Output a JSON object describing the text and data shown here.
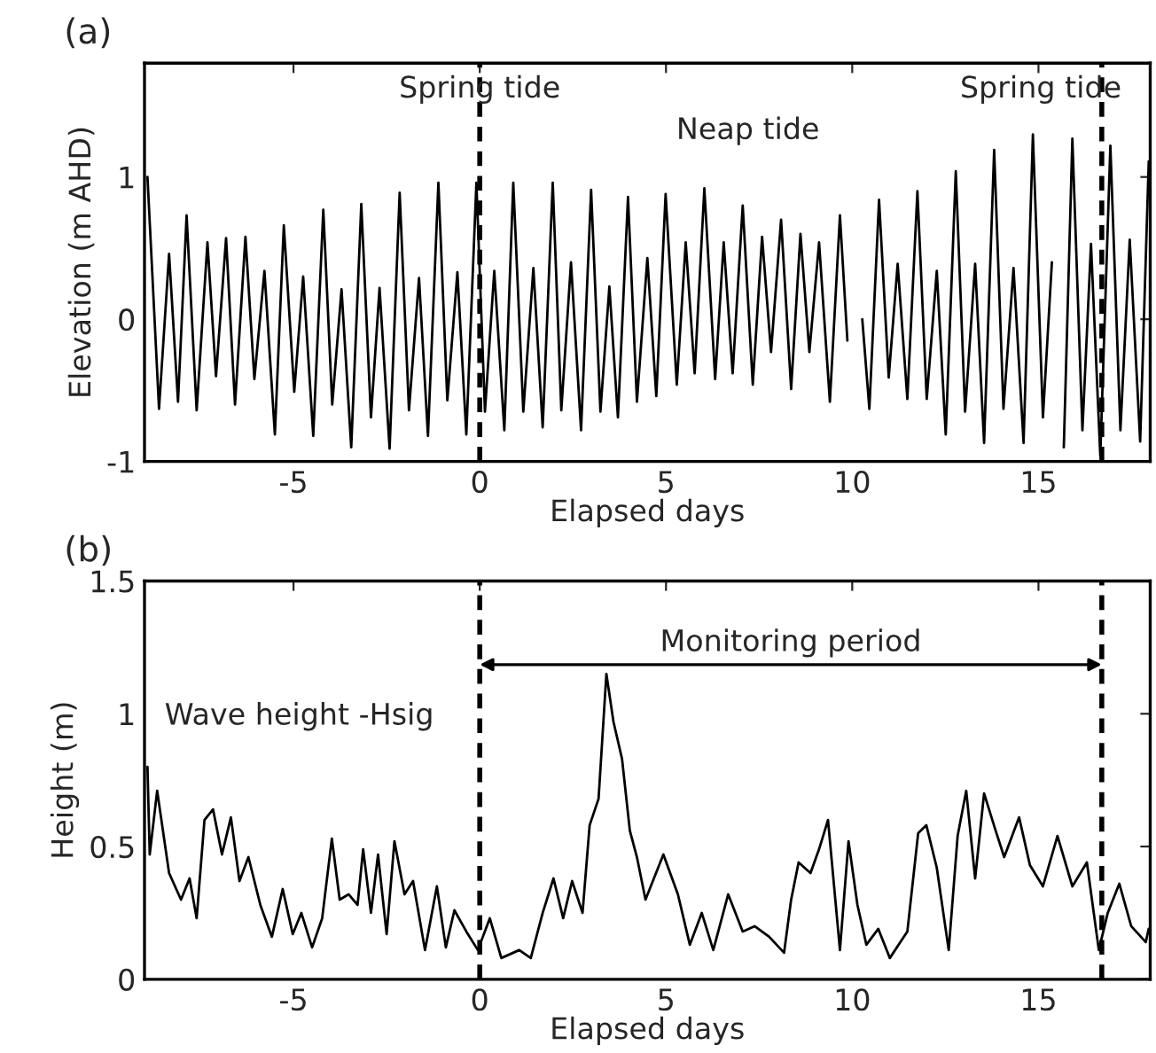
{
  "chart_data": [
    {
      "type": "line",
      "title": "(a)",
      "xlabel": "Elapsed days",
      "ylabel": "Elevation (m AHD)",
      "xlim": [
        -9,
        18
      ],
      "xticks": [
        -5,
        0,
        5,
        10,
        15
      ],
      "ylim": [
        -1,
        1.8
      ],
      "yticks": [
        -1,
        0,
        1
      ],
      "grid": false,
      "legend": false,
      "x": [
        -8.92,
        -8.61,
        -8.34,
        -8.1,
        -7.87,
        -7.6,
        -7.31,
        -7.08,
        -6.81,
        -6.57,
        -6.29,
        -6.05,
        -5.78,
        -5.5,
        -5.26,
        -4.98,
        -4.74,
        -4.47,
        -4.2,
        -3.96,
        -3.71,
        -3.45,
        -3.18,
        -2.92,
        -2.69,
        -2.42,
        -2.15,
        -1.9,
        -1.63,
        -1.39,
        -1.11,
        -0.87,
        -0.6,
        -0.36,
        -0.09,
        0.14,
        0.39,
        0.66,
        0.9,
        1.17,
        1.44,
        1.69,
        1.96,
        2.19,
        2.45,
        2.72,
        2.99,
        3.24,
        3.48,
        3.71,
        3.98,
        4.22,
        4.5,
        4.74,
        4.99,
        5.29,
        5.53,
        5.77,
        6.03,
        6.32,
        6.55,
        6.79,
        7.06,
        7.33,
        7.58,
        7.82,
        8.09,
        8.36,
        8.61,
        8.85,
        9.11,
        9.4,
        9.67,
        9.87,
        10.07,
        10.27,
        10.46,
        10.72,
        10.98,
        11.22,
        11.48,
        11.75,
        12.0,
        12.27,
        12.51,
        12.78,
        13.03,
        13.3,
        13.54,
        13.81,
        14.06,
        14.33,
        14.6,
        14.85,
        15.12,
        15.36,
        15.52,
        15.68,
        15.91,
        16.18,
        16.41,
        16.66,
        16.93,
        17.2,
        17.45,
        17.73,
        17.96
      ],
      "series": [
        {
          "color": "#000000",
          "values": [
            1.0,
            -0.63,
            0.46,
            -0.58,
            0.73,
            -0.64,
            0.54,
            -0.4,
            0.57,
            -0.6,
            0.58,
            -0.42,
            0.34,
            -0.81,
            0.66,
            -0.51,
            0.3,
            -0.82,
            0.77,
            -0.6,
            0.21,
            -0.9,
            0.81,
            -0.69,
            0.22,
            -0.91,
            0.89,
            -0.64,
            0.29,
            -0.82,
            0.96,
            -0.57,
            0.33,
            -0.81,
            0.96,
            -0.65,
            0.34,
            -0.78,
            0.96,
            -0.65,
            0.36,
            -0.76,
            0.96,
            -0.64,
            0.4,
            -0.78,
            0.91,
            -0.65,
            0.23,
            -0.69,
            0.86,
            -0.58,
            0.43,
            -0.54,
            0.88,
            -0.46,
            0.54,
            -0.38,
            0.92,
            -0.42,
            0.54,
            -0.38,
            0.8,
            -0.46,
            0.58,
            -0.23,
            0.7,
            -0.49,
            0.6,
            -0.23,
            0.54,
            -0.58,
            0.73,
            -0.15,
            null,
            0.0,
            -0.63,
            0.84,
            -0.41,
            0.39,
            -0.56,
            0.9,
            -0.56,
            0.34,
            -0.81,
            1.04,
            -0.65,
            0.39,
            -0.87,
            1.19,
            -0.63,
            0.36,
            -0.87,
            1.3,
            -0.69,
            0.4,
            null,
            -0.9,
            1.27,
            -0.78,
            0.53,
            -0.96,
            1.22,
            -0.78,
            0.56,
            -0.86,
            1.11
          ]
        }
      ],
      "ref_lines": [
        {
          "axis": "x",
          "value": 0,
          "label": "Spring tide",
          "color": "#000000",
          "line_style": "dashed"
        },
        {
          "axis": "x",
          "value": 16.7,
          "label": "Spring tide",
          "color": "#000000",
          "line_style": "dashed"
        }
      ],
      "annotations": [
        "Neap tide"
      ]
    },
    {
      "type": "line",
      "title": "(b)",
      "xlabel": "Elapsed days",
      "ylabel": "Height (m)",
      "xlim": [
        -9,
        18
      ],
      "xticks": [
        -5,
        0,
        5,
        10,
        15
      ],
      "ylim": [
        0,
        1.5
      ],
      "yticks": [
        0,
        0.5,
        1,
        1.5
      ],
      "grid": false,
      "legend": false,
      "x": [
        -8.92,
        -8.86,
        -8.66,
        -8.34,
        -8.02,
        -7.79,
        -7.6,
        -7.39,
        -7.16,
        -6.92,
        -6.68,
        -6.45,
        -6.21,
        -5.89,
        -5.58,
        -5.29,
        -5.02,
        -4.79,
        -4.5,
        -4.23,
        -3.97,
        -3.76,
        -3.52,
        -3.28,
        -3.13,
        -2.92,
        -2.73,
        -2.5,
        -2.29,
        -2.02,
        -1.79,
        -1.47,
        -1.15,
        -0.91,
        -0.68,
        -0.36,
        -0.05,
        0.27,
        0.58,
        1.06,
        1.37,
        1.69,
        1.98,
        2.24,
        2.48,
        2.76,
        2.95,
        3.19,
        3.4,
        3.59,
        3.82,
        4.03,
        4.22,
        4.45,
        4.93,
        5.32,
        5.64,
        5.96,
        6.27,
        6.67,
        7.06,
        7.38,
        7.77,
        8.17,
        8.36,
        8.56,
        8.88,
        9.11,
        9.35,
        9.67,
        9.9,
        10.14,
        10.38,
        10.7,
        11.01,
        11.48,
        11.77,
        11.99,
        12.27,
        12.59,
        12.83,
        13.06,
        13.3,
        13.54,
        13.85,
        14.08,
        14.48,
        14.77,
        15.12,
        15.51,
        15.91,
        16.3,
        16.62,
        16.86,
        17.17,
        17.49,
        17.88,
        17.96
      ],
      "series": [
        {
          "color": "#000000",
          "values": [
            0.8,
            0.47,
            0.71,
            0.4,
            0.3,
            0.38,
            0.23,
            0.6,
            0.64,
            0.47,
            0.61,
            0.37,
            0.46,
            0.28,
            0.16,
            0.34,
            0.17,
            0.25,
            0.12,
            0.23,
            0.53,
            0.3,
            0.32,
            0.28,
            0.49,
            0.25,
            0.47,
            0.17,
            0.52,
            0.32,
            0.37,
            0.11,
            0.35,
            0.12,
            0.26,
            0.18,
            0.11,
            0.23,
            0.08,
            0.11,
            0.08,
            0.25,
            0.38,
            0.23,
            0.37,
            0.25,
            0.58,
            0.68,
            1.15,
            0.97,
            0.83,
            0.56,
            0.46,
            0.3,
            0.47,
            0.32,
            0.13,
            0.25,
            0.11,
            0.32,
            0.18,
            0.2,
            0.16,
            0.1,
            0.3,
            0.44,
            0.4,
            0.49,
            0.6,
            0.11,
            0.52,
            0.28,
            0.13,
            0.19,
            0.08,
            0.18,
            0.55,
            0.58,
            0.42,
            0.11,
            0.54,
            0.71,
            0.38,
            0.7,
            0.56,
            0.46,
            0.61,
            0.43,
            0.35,
            0.54,
            0.35,
            0.44,
            0.11,
            0.25,
            0.36,
            0.2,
            0.14,
            0.19
          ]
        }
      ],
      "ref_lines": [
        {
          "axis": "x",
          "value": 0,
          "color": "#000000",
          "line_style": "dashed"
        },
        {
          "axis": "x",
          "value": 16.7,
          "color": "#000000",
          "line_style": "dashed"
        }
      ],
      "annotations": [
        "Monitoring period",
        "Wave height -Hsig"
      ]
    }
  ]
}
